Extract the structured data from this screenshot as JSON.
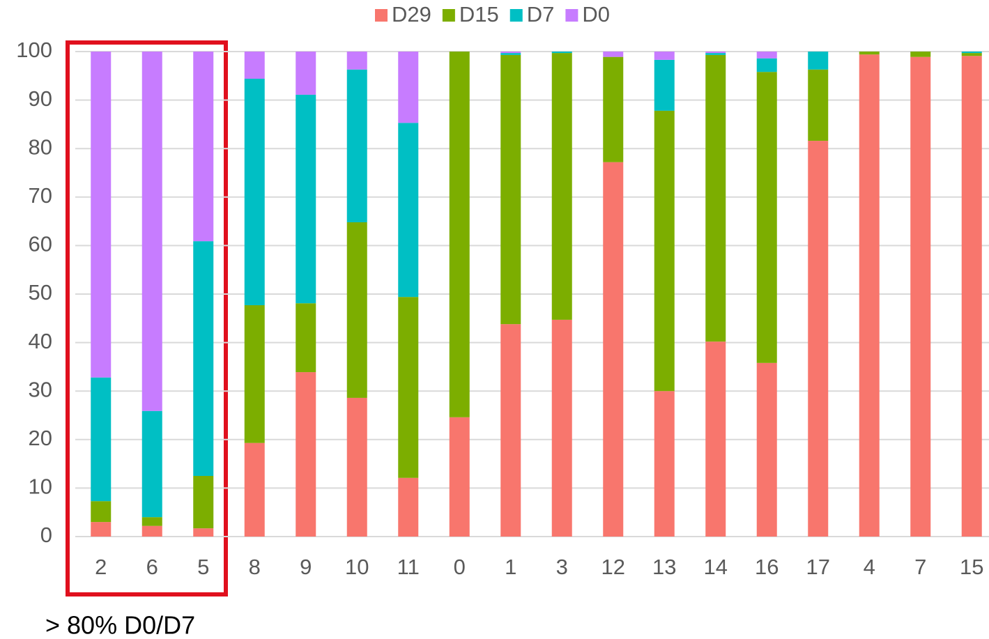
{
  "chart_data": {
    "type": "bar",
    "stacked": true,
    "categories": [
      "2",
      "6",
      "5",
      "8",
      "9",
      "10",
      "11",
      "0",
      "1",
      "3",
      "12",
      "13",
      "14",
      "16",
      "17",
      "4",
      "7",
      "15"
    ],
    "series": [
      {
        "name": "D29",
        "color": "#f8766d",
        "values": [
          3.0,
          2.2,
          1.7,
          19.3,
          33.9,
          28.6,
          12.1,
          24.6,
          43.8,
          44.7,
          77.2,
          30.0,
          40.2,
          35.8,
          81.6,
          99.4,
          98.9,
          99.1
        ]
      },
      {
        "name": "D15",
        "color": "#7cae00",
        "values": [
          4.3,
          1.8,
          10.8,
          28.4,
          14.2,
          36.2,
          37.3,
          75.4,
          55.5,
          55.0,
          21.7,
          57.8,
          59.1,
          60.0,
          14.7,
          0.6,
          1.1,
          0.6
        ]
      },
      {
        "name": "D7",
        "color": "#00bfc4",
        "values": [
          25.5,
          21.9,
          48.4,
          46.7,
          43.0,
          31.5,
          35.9,
          0,
          0.4,
          0.3,
          0,
          10.5,
          0.4,
          2.8,
          3.7,
          0,
          0,
          0.3
        ]
      },
      {
        "name": "D0",
        "color": "#c77cff",
        "values": [
          67.2,
          74.1,
          39.1,
          5.6,
          8.9,
          3.7,
          14.7,
          0,
          0.3,
          0,
          1.1,
          1.7,
          0.3,
          1.4,
          0,
          0,
          0,
          0
        ]
      }
    ],
    "ylim": [
      0,
      100
    ],
    "yticks": [
      0,
      10,
      20,
      30,
      40,
      50,
      60,
      70,
      80,
      90,
      100
    ],
    "grid": true,
    "legend": "top",
    "annotation": "> 80% D0/D7"
  }
}
